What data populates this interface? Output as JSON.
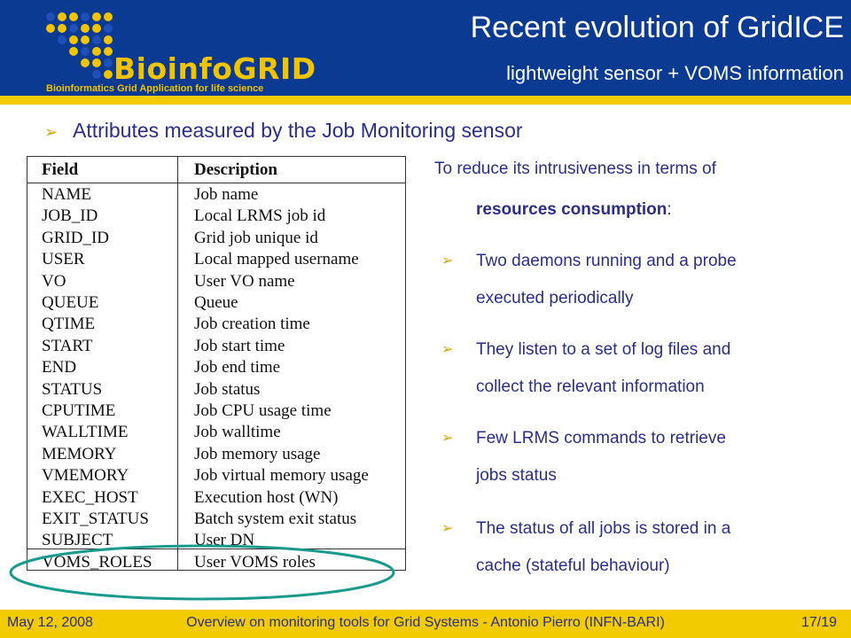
{
  "header": {
    "logo": {
      "word": "BioinfoGRID",
      "tagline": "Bioinformatics Grid Application for life science"
    },
    "title": "Recent evolution of GridICE",
    "subtitle": "lightweight sensor + VOMS information"
  },
  "section": {
    "heading": "Attributes measured by the Job Monitoring sensor",
    "bullet_icon": "arrow-bullet-icon"
  },
  "table": {
    "headers": [
      "Field",
      "Description"
    ],
    "rows": [
      [
        "NAME",
        "Job name"
      ],
      [
        "JOB_ID",
        "Local LRMS job id"
      ],
      [
        "GRID_ID",
        "Grid job unique id"
      ],
      [
        "USER",
        "Local mapped username"
      ],
      [
        "VO",
        "User VO name"
      ],
      [
        "QUEUE",
        "Queue"
      ],
      [
        "QTIME",
        "Job creation time"
      ],
      [
        "START",
        "Job start time"
      ],
      [
        "END",
        "Job end time"
      ],
      [
        "STATUS",
        "Job status"
      ],
      [
        "CPUTIME",
        "Job CPU usage time"
      ],
      [
        "WALLTIME",
        "Job walltime"
      ],
      [
        "MEMORY",
        "Job memory usage"
      ],
      [
        "VMEMORY",
        "Job virtual memory usage"
      ],
      [
        "EXEC_HOST",
        "Execution host (WN)"
      ],
      [
        "EXIT_STATUS",
        "Batch system exit status"
      ],
      [
        "SUBJECT",
        "User DN"
      ],
      [
        "VOMS_ROLES",
        "User VOMS roles"
      ]
    ],
    "highlighted_row": "VOMS_ROLES"
  },
  "right": {
    "intro": "To reduce its intrusiveness in terms of",
    "intro_bold": "resources consumption",
    "intro_end": ":",
    "bullets": [
      {
        "line1": "Two daemons running and a probe",
        "line2": "executed periodically"
      },
      {
        "line1": "They listen to a set of log files and",
        "line2": "collect the relevant information"
      },
      {
        "line1": "Few LRMS commands to retrieve",
        "line2": "jobs status"
      },
      {
        "line1": "The status of all jobs is stored in a",
        "line2": "cache (stateful behaviour)"
      }
    ]
  },
  "footer": {
    "date": "May 12, 2008",
    "center": "Overview on monitoring tools for Grid Systems - Antonio Pierro (INFN-BARI)",
    "page": "17/19"
  },
  "colors": {
    "header_blue": "#0a3a91",
    "accent_yellow": "#f2cc00",
    "text_blue": "#2a2e8a",
    "ellipse_teal": "#1a9a8c"
  }
}
